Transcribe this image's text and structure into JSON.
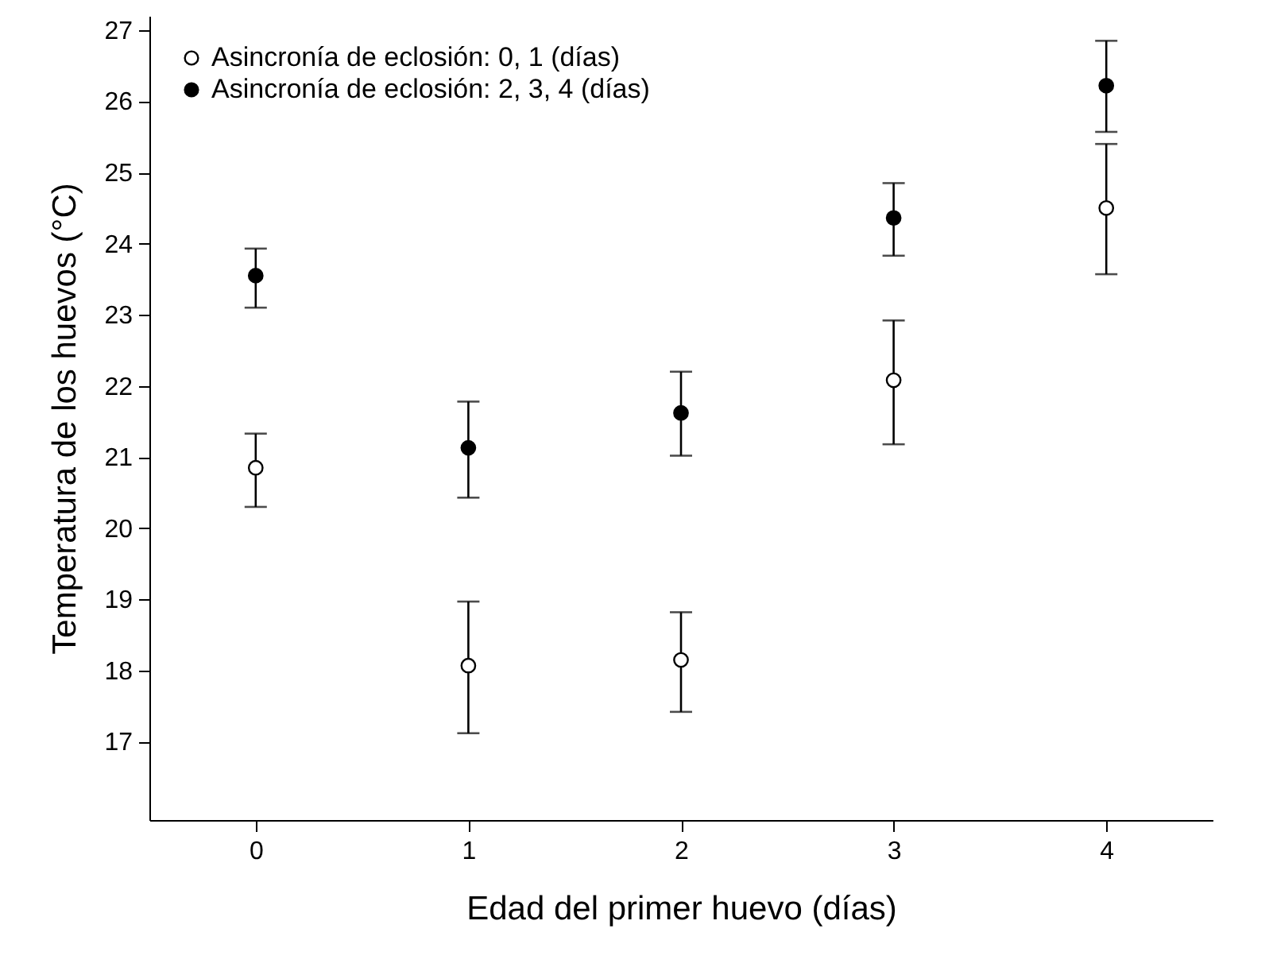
{
  "chart_data": {
    "type": "scatter",
    "xlabel": "Edad del primer huevo (días)",
    "ylabel": "Temperatura de los huevos (°C)",
    "x": [
      0,
      1,
      2,
      3,
      4
    ],
    "xlim": [
      -0.5,
      4.5
    ],
    "xticks": [
      0,
      1,
      2,
      3,
      4
    ],
    "ylim": [
      15.9,
      27.2
    ],
    "yticks": [
      17,
      18,
      19,
      20,
      21,
      22,
      23,
      24,
      25,
      26,
      27
    ],
    "series": [
      {
        "name": "Asincronía de eclosión: 0, 1 (días)",
        "color": "#ffffff",
        "values": [
          20.85,
          18.07,
          18.15,
          22.08,
          24.5
        ],
        "errors": [
          [
            20.3,
            21.33
          ],
          [
            17.12,
            18.97
          ],
          [
            17.42,
            18.82
          ],
          [
            21.18,
            22.92
          ],
          [
            23.57,
            25.4
          ]
        ]
      },
      {
        "name": "Asincronía de eclosión: 2, 3, 4 (días)",
        "color": "#000000",
        "values": [
          23.55,
          21.13,
          21.62,
          24.36,
          26.22
        ],
        "errors": [
          [
            23.1,
            23.93
          ],
          [
            20.43,
            21.78
          ],
          [
            21.02,
            22.2
          ],
          [
            23.83,
            24.85
          ],
          [
            25.57,
            26.85
          ]
        ]
      }
    ],
    "legend": "top left",
    "marker": "circle",
    "grid": false
  }
}
